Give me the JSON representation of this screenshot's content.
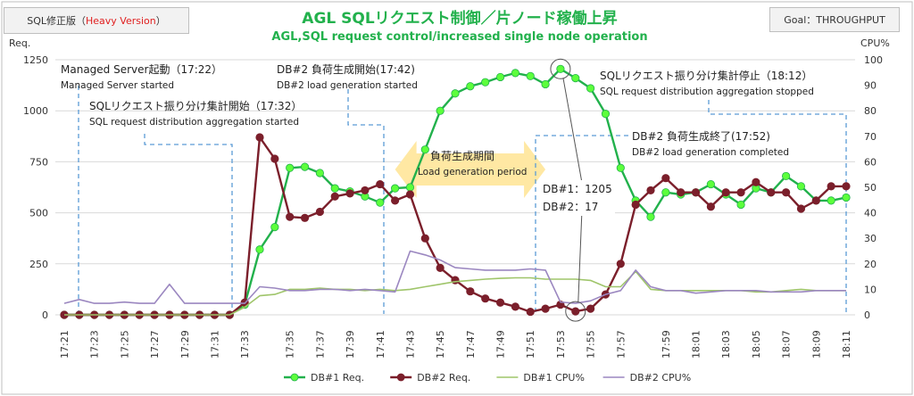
{
  "badge_left": {
    "prefix": "SQL修正版（",
    "highlight": "Heavy Version",
    "suffix": "）",
    "highlight_color": "#e02020"
  },
  "badge_right": "Goal：THROUGHPUT",
  "title_jp": "AGL SQLリクエスト制御／片ノード稼働上昇",
  "title_en": "AGL,SQL request control/increased single node operation",
  "annotations": {
    "managed_jp": "Managed Server起動（17:22）",
    "managed_en": "Managed Server started",
    "agg_start_jp": "SQLリクエスト振り分け集計開始（17:32）",
    "agg_start_en": "SQL request distribution aggregation started",
    "load_start_jp": "DB#2 負荷生成開始(17:42)",
    "load_start_en": "DB#2 load generation started",
    "agg_stop_jp": "SQLリクエスト振り分け集計停止（18:12）",
    "agg_stop_en": "SQL request distribution aggregation stopped",
    "load_end_jp": "DB#2 負荷生成終了(17:52)",
    "load_end_en": "DB#2 load generation completed",
    "period_jp": "負荷生成期間",
    "period_en": "Load generation period",
    "peak_db1": "DB#1：1205",
    "peak_db2": "DB#2：17"
  },
  "chart_data": {
    "type": "line",
    "ylabel_left": "Req.",
    "ylabel_right": "CPU%",
    "ylim_left": [
      0,
      1250
    ],
    "yticks_left": [
      0,
      250,
      500,
      750,
      1000,
      1250
    ],
    "ylim_right": [
      0,
      100
    ],
    "yticks_right": [
      0,
      10,
      20,
      30,
      40,
      50,
      60,
      70,
      80,
      90,
      100
    ],
    "xtick_labels": [
      "17:21",
      "17:23",
      "17:25",
      "17:27",
      "17:29",
      "17:31",
      "17:33",
      "17:35",
      "17:37",
      "17:39",
      "17:41",
      "17:43",
      "17:45",
      "17:47",
      "17:49",
      "17:51",
      "17:53",
      "17:55",
      "17:57",
      "17:59",
      "18:01",
      "18:03",
      "18:05",
      "18:07",
      "18:09",
      "18:11"
    ],
    "series": [
      {
        "name": "DB#1 Req.",
        "axis": "left",
        "color": "#22b14c",
        "marker_fill": "#5cff3c",
        "line_width": 2.4,
        "values": [
          0,
          0,
          0,
          0,
          0,
          0,
          0,
          0,
          0,
          0,
          0,
          0,
          50,
          320,
          430,
          720,
          725,
          695,
          620,
          605,
          580,
          550,
          620,
          625,
          810,
          1000,
          1085,
          1120,
          1140,
          1165,
          1185,
          1170,
          1130,
          1205,
          1160,
          1110,
          985,
          720,
          560,
          480,
          600,
          590,
          600,
          640,
          590,
          540,
          620,
          600,
          680,
          630,
          560,
          560,
          575
        ]
      },
      {
        "name": "DB#2 Req.",
        "axis": "left",
        "color": "#7b1f2b",
        "marker_fill": "#7b1f2b",
        "line_width": 2.4,
        "values": [
          0,
          0,
          0,
          0,
          0,
          0,
          0,
          0,
          0,
          0,
          0,
          0,
          60,
          870,
          765,
          480,
          475,
          505,
          580,
          595,
          610,
          640,
          560,
          590,
          375,
          230,
          170,
          115,
          80,
          60,
          40,
          15,
          30,
          50,
          17,
          30,
          100,
          250,
          540,
          610,
          670,
          600,
          600,
          530,
          600,
          600,
          650,
          600,
          600,
          520,
          560,
          630,
          630
        ]
      },
      {
        "name": "DB#1 CPU%",
        "axis": "right",
        "color": "#9fc56a",
        "line_width": 1.6,
        "values": [
          0,
          0,
          0,
          0,
          0,
          0,
          0,
          0,
          0,
          0,
          0,
          0,
          3,
          7.5,
          8,
          10,
          10,
          10.5,
          10,
          10,
          9.5,
          10,
          9.5,
          10,
          11,
          12,
          13,
          13.5,
          14,
          14.3,
          14.5,
          14.5,
          14,
          14,
          14,
          13.5,
          11,
          11,
          17,
          10,
          9.5,
          9.5,
          9.5,
          9.5,
          9.5,
          9.5,
          9,
          9,
          9.5,
          10,
          9.5,
          9.5,
          9.5
        ]
      },
      {
        "name": "DB#2 CPU%",
        "axis": "right",
        "color": "#9b87c0",
        "line_width": 1.6,
        "values": [
          4.5,
          6,
          4.5,
          4.5,
          5,
          4.5,
          4.5,
          12,
          4.5,
          4.5,
          4.5,
          4.5,
          4.5,
          11,
          10.5,
          9.5,
          9.5,
          10,
          10,
          9.5,
          10,
          9.5,
          9,
          25,
          23.5,
          21.5,
          18.5,
          18,
          17.5,
          17.5,
          17.5,
          18,
          17.5,
          5,
          4.5,
          5.5,
          8,
          9.5,
          17.5,
          11,
          9.5,
          9.5,
          8.5,
          9,
          9.5,
          9.5,
          9.5,
          9,
          9,
          9,
          9.5,
          9.5,
          9.5
        ]
      }
    ]
  }
}
